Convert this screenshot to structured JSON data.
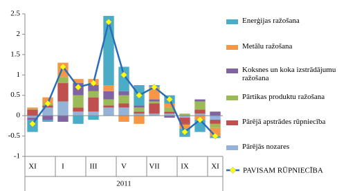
{
  "chart_data": {
    "type": "stacked-bar-line",
    "categories": [
      "XI",
      null,
      "I",
      null,
      "III",
      null,
      "V",
      null,
      "VII",
      null,
      "IX",
      null,
      "XI"
    ],
    "group_label": "2011",
    "ylim": [
      -1,
      2.5
    ],
    "yticks": [
      2.5,
      2,
      1.5,
      1,
      0.5,
      0,
      -0.5,
      -1
    ],
    "series": [
      {
        "name": "Pārējās nozares",
        "color": "#95b3d7",
        "values": [
          -0.05,
          0.2,
          0.35,
          0.1,
          0.1,
          0.2,
          0.2,
          0.05,
          0.05,
          0.05,
          -0.05,
          0.05,
          -0.1
        ]
      },
      {
        "name": "Pārējā apstrādes rūpniecība",
        "color": "#c0504d",
        "values": [
          0.15,
          0.05,
          0.45,
          0.1,
          0.35,
          0.05,
          0.1,
          0.05,
          0.25,
          0.05,
          -0.15,
          0.1,
          -0.1
        ]
      },
      {
        "name": "Pārtikas produktu ražošana",
        "color": "#9bbb59",
        "values": [
          0.02,
          0.05,
          0.15,
          0.3,
          0.15,
          0.15,
          0.2,
          0.1,
          0.05,
          0.1,
          0.05,
          0.2,
          -0.1
        ]
      },
      {
        "name": "Koksnes un koka izstrādājumu ražošana",
        "color": "#8064a2",
        "values": [
          -0.05,
          -0.1,
          -0.15,
          0.3,
          0.15,
          0.2,
          0.1,
          0.05,
          0.05,
          -0.05,
          -0.02,
          0.05,
          0.1
        ]
      },
      {
        "name": "Metālu ražošana",
        "color": "#f79646",
        "values": [
          0.03,
          0.15,
          0.35,
          0.1,
          0.15,
          0.15,
          -0.15,
          -0.2,
          0.3,
          0.1,
          -0.1,
          -0.1,
          -0.2
        ]
      },
      {
        "name": "Enerģijas ražošana",
        "color": "#4bacc6",
        "values": [
          -0.3,
          -0.05,
          0,
          -0.2,
          -0.1,
          1.7,
          0.6,
          0.5,
          0.05,
          0.2,
          -0.2,
          -0.3,
          -0.05
        ]
      }
    ],
    "line": {
      "name": "PAVISAM RŪPNIECĪBA",
      "color": "#2a6eb5",
      "marker_color": "#ffff00",
      "values": [
        -0.2,
        0.3,
        1.2,
        0.7,
        0.8,
        2.3,
        1.0,
        0.5,
        0.7,
        0.4,
        -0.4,
        -0.1,
        -0.5
      ]
    }
  }
}
